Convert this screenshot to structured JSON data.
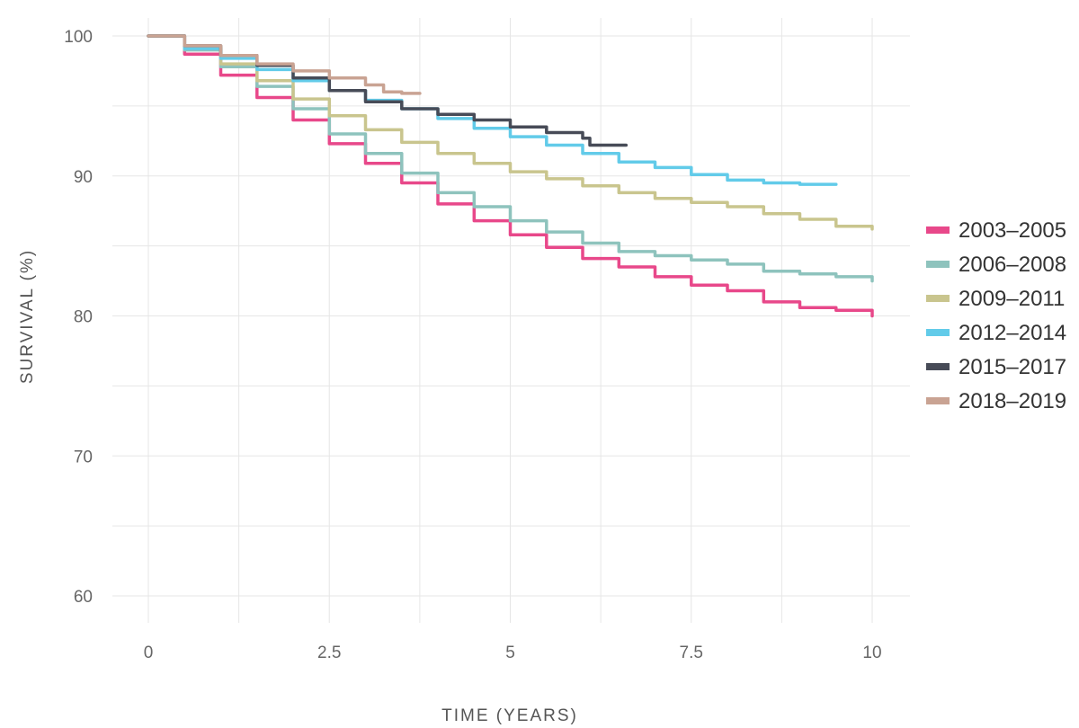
{
  "chart_data": {
    "type": "line",
    "title": "",
    "xlabel": "TIME (YEARS)",
    "ylabel": "SURVIVAL (%)",
    "xlim": [
      0,
      10
    ],
    "ylim": [
      60,
      100
    ],
    "xticks": [
      0,
      2.5,
      5,
      7.5,
      10
    ],
    "xtick_labels": [
      "0",
      "2.5",
      "5",
      "7.5",
      "10"
    ],
    "yticks": [
      60,
      70,
      80,
      90,
      100
    ],
    "ytick_labels": [
      "60",
      "70",
      "80",
      "90",
      "100"
    ],
    "grid": true,
    "legend_position": "right",
    "series": [
      {
        "name": "2003–2005",
        "color": "#e8488a",
        "x": [
          0,
          0.5,
          1.0,
          1.5,
          2.0,
          2.5,
          3.0,
          3.5,
          4.0,
          4.5,
          5.0,
          5.5,
          6.0,
          6.5,
          7.0,
          7.5,
          8.0,
          8.5,
          9.0,
          9.5,
          10.0
        ],
        "y": [
          100,
          98.7,
          97.2,
          95.6,
          94.0,
          92.3,
          90.9,
          89.5,
          88.0,
          86.8,
          85.8,
          84.9,
          84.1,
          83.5,
          82.8,
          82.2,
          81.8,
          81.0,
          80.6,
          80.4,
          80.0
        ]
      },
      {
        "name": "2006–2008",
        "color": "#8ec3bd",
        "x": [
          0,
          0.5,
          1.0,
          1.5,
          2.0,
          2.5,
          3.0,
          3.5,
          4.0,
          4.5,
          5.0,
          5.5,
          6.0,
          6.5,
          7.0,
          7.5,
          8.0,
          8.5,
          9.0,
          9.5,
          10.0
        ],
        "y": [
          100,
          99.0,
          97.8,
          96.4,
          94.8,
          93.0,
          91.6,
          90.2,
          88.8,
          87.8,
          86.8,
          86.0,
          85.2,
          84.6,
          84.3,
          84.0,
          83.7,
          83.2,
          83.0,
          82.8,
          82.5
        ]
      },
      {
        "name": "2009–2011",
        "color": "#c9c58e",
        "x": [
          0,
          0.5,
          1.0,
          1.5,
          2.0,
          2.5,
          3.0,
          3.5,
          4.0,
          4.5,
          5.0,
          5.5,
          6.0,
          6.5,
          7.0,
          7.5,
          8.0,
          8.5,
          9.0,
          9.5,
          10.0
        ],
        "y": [
          100,
          99.2,
          98.0,
          96.8,
          95.5,
          94.3,
          93.3,
          92.4,
          91.6,
          90.9,
          90.3,
          89.8,
          89.3,
          88.8,
          88.4,
          88.1,
          87.8,
          87.3,
          86.9,
          86.4,
          86.2
        ]
      },
      {
        "name": "2012–2014",
        "color": "#62cbe9",
        "x": [
          0,
          0.5,
          1.0,
          1.5,
          2.0,
          2.5,
          3.0,
          3.5,
          4.0,
          4.5,
          5.0,
          5.5,
          6.0,
          6.5,
          7.0,
          7.5,
          8.0,
          8.5,
          9.0,
          9.5
        ],
        "y": [
          100,
          99.1,
          98.4,
          97.6,
          96.8,
          96.1,
          95.4,
          94.8,
          94.1,
          93.4,
          92.8,
          92.2,
          91.6,
          91.0,
          90.6,
          90.1,
          89.7,
          89.5,
          89.4,
          89.4
        ]
      },
      {
        "name": "2015–2017",
        "color": "#474b57",
        "x": [
          0,
          0.5,
          1.0,
          1.5,
          2.0,
          2.5,
          3.0,
          3.5,
          4.0,
          4.5,
          5.0,
          5.5,
          6.0,
          6.1,
          6.6
        ],
        "y": [
          100,
          99.3,
          98.6,
          97.9,
          97.0,
          96.1,
          95.3,
          94.8,
          94.4,
          94.0,
          93.5,
          93.1,
          92.7,
          92.2,
          92.2
        ]
      },
      {
        "name": "2018–2019",
        "color": "#c9a393",
        "x": [
          0,
          0.5,
          1.0,
          1.5,
          2.0,
          2.5,
          3.0,
          3.25,
          3.5,
          3.75
        ],
        "y": [
          100,
          99.3,
          98.6,
          98.0,
          97.5,
          97.0,
          96.5,
          96.0,
          95.9,
          95.9
        ]
      }
    ]
  }
}
